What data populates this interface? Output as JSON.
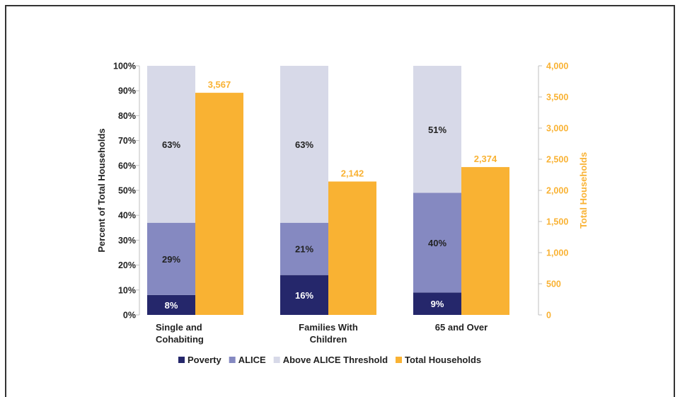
{
  "chart_data": {
    "type": "bar",
    "categories": [
      [
        "Single and",
        "Cohabiting"
      ],
      [
        "Families With",
        "Children"
      ],
      [
        "65 and Over"
      ]
    ],
    "left_axis": {
      "label": "Percent of Total Households",
      "ticks": [
        "0%",
        "10%",
        "20%",
        "30%",
        "40%",
        "50%",
        "60%",
        "70%",
        "80%",
        "90%",
        "100%"
      ],
      "ylim": [
        0,
        100
      ]
    },
    "right_axis": {
      "label": "Total Households",
      "ticks": [
        "0",
        "500",
        "1,000",
        "1,500",
        "2,000",
        "2,500",
        "3,000",
        "3,500",
        "4,000"
      ],
      "ylim": [
        0,
        4000
      ]
    },
    "stacked_series": [
      {
        "name": "Poverty",
        "color": "#25276B",
        "label_color": "#ffffff",
        "values": [
          8,
          16,
          9
        ],
        "labels": [
          "8%",
          "16%",
          "9%"
        ]
      },
      {
        "name": "ALICE",
        "color": "#8589C1",
        "label_color": "#222222",
        "values": [
          29,
          21,
          40
        ],
        "labels": [
          "29%",
          "21%",
          "40%"
        ]
      },
      {
        "name": "Above ALICE Threshold",
        "color": "#D7D9E8",
        "label_color": "#222222",
        "values": [
          63,
          63,
          51
        ],
        "labels": [
          "63%",
          "63%",
          "51%"
        ]
      }
    ],
    "total_series": {
      "name": "Total Households",
      "color": "#F9B233",
      "values": [
        3567,
        2142,
        2374
      ],
      "labels": [
        "3,567",
        "2,142",
        "2,374"
      ]
    },
    "legend": {
      "position": "bottom",
      "items": [
        {
          "name": "Poverty",
          "color": "#25276B"
        },
        {
          "name": "ALICE",
          "color": "#8589C1"
        },
        {
          "name": "Above ALICE Threshold",
          "color": "#D7D9E8"
        },
        {
          "name": "Total Households",
          "color": "#F9B233"
        }
      ]
    }
  }
}
